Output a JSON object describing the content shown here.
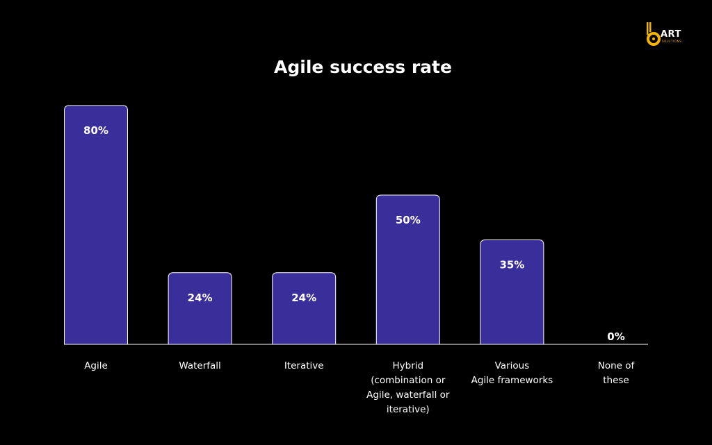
{
  "brand": {
    "name": "ART",
    "tagline": "SOLUTIONS",
    "accent_color": "#f5b400"
  },
  "colors": {
    "bar_fill": "#3a2e9a",
    "bar_stroke": "#ffffff",
    "background": "#000000",
    "text": "#ffffff"
  },
  "chart_data": {
    "type": "bar",
    "title": "Agile success rate",
    "xlabel": "",
    "ylabel": "",
    "ylim": [
      0,
      80
    ],
    "grid": false,
    "legend": "none",
    "categories": [
      [
        "Agile"
      ],
      [
        "Waterfall"
      ],
      [
        "Iterative"
      ],
      [
        "Hybrid",
        "(combination or",
        "Agile, waterfall or",
        "iterative)"
      ],
      [
        "Various",
        "Agile frameworks"
      ],
      [
        "None of",
        "these"
      ]
    ],
    "values": [
      80,
      24,
      24,
      50,
      35,
      0
    ],
    "value_labels": [
      "80%",
      "24%",
      "24%",
      "50%",
      "35%",
      "0%"
    ]
  }
}
